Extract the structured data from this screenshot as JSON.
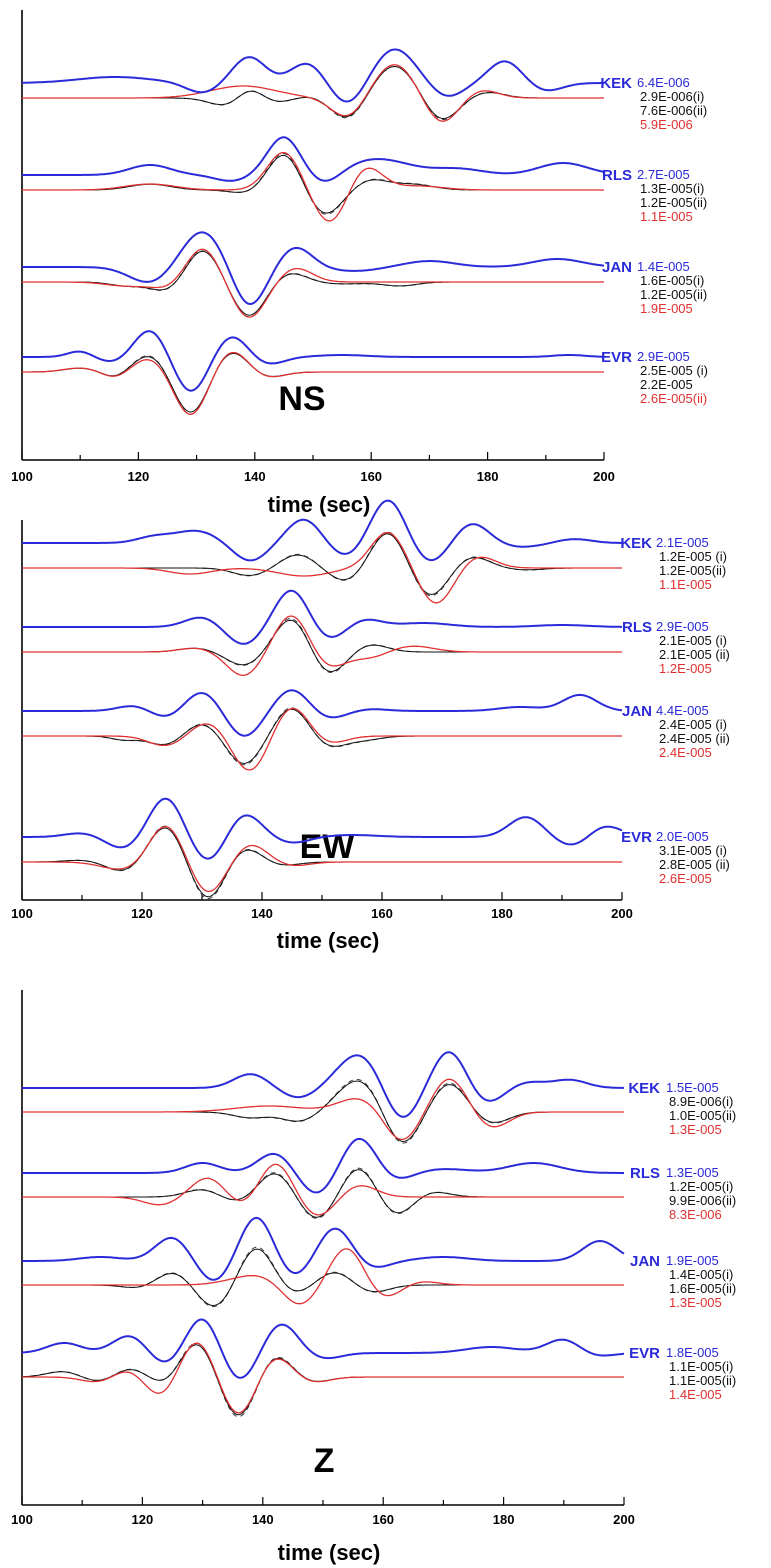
{
  "figure": {
    "xlabel": "time (sec)",
    "xticks": [
      "100",
      "120",
      "140",
      "160",
      "180",
      "200"
    ],
    "colors": {
      "observed": "#2a2ad8",
      "synthetic_i": "#111111",
      "synthetic_ii": "#444444",
      "red": "#e03030",
      "axis": "#000000"
    }
  },
  "chart_data": [
    {
      "type": "line",
      "component": "NS",
      "xlim": [
        100,
        200
      ],
      "stations": [
        {
          "name": "KEK",
          "amplitudes": [
            "6.4E-006",
            "2.9E-006(i)",
            "7.6E-006(ii)",
            "5.9E-006"
          ]
        },
        {
          "name": "RLS",
          "amplitudes": [
            "2.7E-005",
            "1.3E-005(i)",
            "1.2E-005(ii)",
            "1.1E-005"
          ]
        },
        {
          "name": "JAN",
          "amplitudes": [
            "1.4E-005",
            "1.6E-005(i)",
            "1.2E-005(ii)",
            "1.9E-005"
          ]
        },
        {
          "name": "EVR",
          "amplitudes": [
            "2.9E-005",
            "2.5E-005 (i)",
            "2.2E-005",
            "2.6E-005(ii)"
          ]
        }
      ]
    },
    {
      "type": "line",
      "component": "EW",
      "xlim": [
        100,
        200
      ],
      "stations": [
        {
          "name": "KEK",
          "amplitudes": [
            "2.1E-005",
            "1.2E-005 (i)",
            "1.2E-005(ii)",
            "1.1E-005"
          ]
        },
        {
          "name": "RLS",
          "amplitudes": [
            "2.9E-005",
            "2.1E-005 (i)",
            "2.1E-005 (ii)",
            "1.2E-005"
          ]
        },
        {
          "name": "JAN",
          "amplitudes": [
            "4.4E-005",
            "2.4E-005 (i)",
            "2.4E-005 (ii)",
            "2.4E-005"
          ]
        },
        {
          "name": "EVR",
          "amplitudes": [
            "2.0E-005",
            "3.1E-005 (i)",
            "2.8E-005 (ii)",
            "2.6E-005"
          ]
        }
      ]
    },
    {
      "type": "line",
      "component": "Z",
      "xlim": [
        100,
        200
      ],
      "stations": [
        {
          "name": "KEK",
          "amplitudes": [
            "1.5E-005",
            "8.9E-006(i)",
            "1.0E-005(ii)",
            "1.3E-005"
          ]
        },
        {
          "name": "RLS",
          "amplitudes": [
            "1.3E-005",
            "1.2E-005(i)",
            "9.9E-006(ii)",
            "8.3E-006"
          ]
        },
        {
          "name": "JAN",
          "amplitudes": [
            "1.9E-005",
            "1.4E-005(i)",
            "1.6E-005(ii)",
            "1.3E-005"
          ]
        },
        {
          "name": "EVR",
          "amplitudes": [
            "1.8E-005",
            "1.1E-005(i)",
            "1.1E-005(ii)",
            "1.4E-005"
          ]
        }
      ]
    }
  ]
}
